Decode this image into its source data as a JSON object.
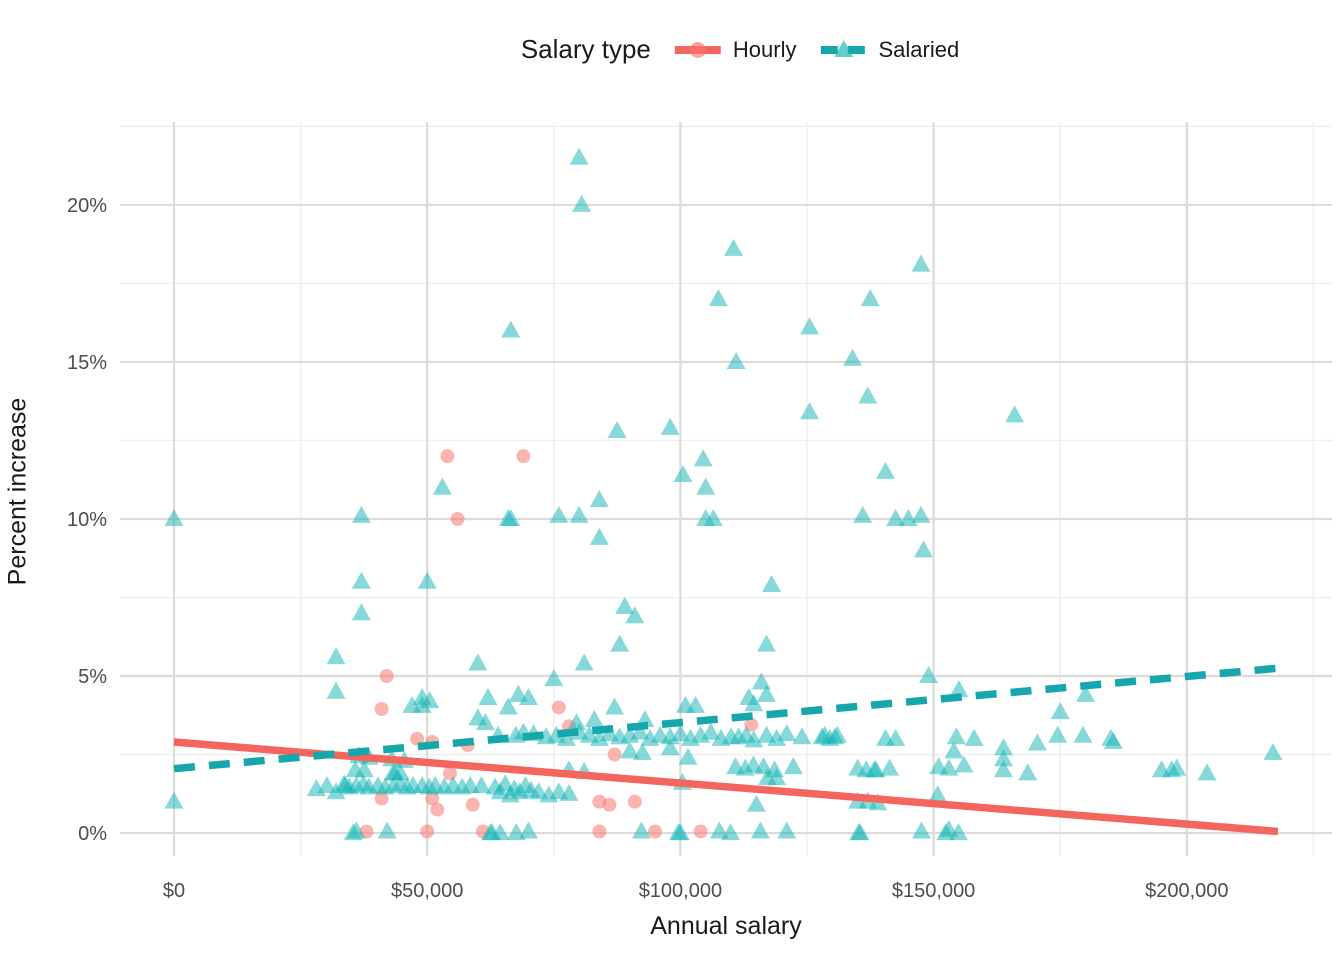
{
  "legend": {
    "title": "Salary type",
    "items": [
      {
        "label": "Hourly"
      },
      {
        "label": "Salaried"
      }
    ]
  },
  "axes": {
    "x": {
      "title": "Annual salary",
      "tick_labels": [
        "$0",
        "$50,000",
        "$100,000",
        "$150,000",
        "$200,000"
      ]
    },
    "y": {
      "title": "Percent increase",
      "tick_labels": [
        "0%",
        "5%",
        "10%",
        "15%",
        "20%"
      ]
    }
  },
  "chart_data": {
    "type": "scatter",
    "title": "",
    "xlabel": "Annual salary",
    "ylabel": "Percent increase",
    "legend_title": "Salary type",
    "legend_position": "top",
    "grid": {
      "major_color": "#dbdbdb",
      "minor_color": "#eeeeee"
    },
    "x_range": [
      -10663,
      228672
    ],
    "y_range": [
      -0.73,
      22.64
    ],
    "x_major": [
      0,
      50000,
      100000,
      150000,
      200000
    ],
    "x_major_labels": [
      "$0",
      "$50,000",
      "$100,000",
      "$150,000",
      "$200,000"
    ],
    "x_minor": [
      25000,
      75000,
      125000,
      175000,
      225000
    ],
    "y_major": [
      0,
      5,
      10,
      15,
      20
    ],
    "y_major_labels": [
      "0%",
      "5%",
      "10%",
      "15%",
      "20%"
    ],
    "y_minor": [
      2.5,
      7.5,
      12.5,
      17.5,
      22.5
    ],
    "series": [
      {
        "name": "Hourly",
        "marker": "circle",
        "marker_color": "#F8766D",
        "marker_opacity": 0.55,
        "line_color": "#F4655E",
        "line_style": "solid",
        "trend": {
          "x": [
            0,
            218000
          ],
          "y": [
            2.9,
            0.05
          ]
        },
        "points": [
          [
            54000,
            12
          ],
          [
            69000,
            12
          ],
          [
            56000,
            10
          ],
          [
            42000,
            5
          ],
          [
            41000,
            3.95
          ],
          [
            76000,
            4
          ],
          [
            78000,
            3.4
          ],
          [
            114000,
            3.45
          ],
          [
            48000,
            3
          ],
          [
            51000,
            2.9
          ],
          [
            58000,
            2.8
          ],
          [
            87000,
            2.5
          ],
          [
            54500,
            1.9
          ],
          [
            41000,
            1.1
          ],
          [
            51000,
            1.1
          ],
          [
            59000,
            0.9
          ],
          [
            84000,
            1
          ],
          [
            86000,
            0.9
          ],
          [
            91000,
            1
          ],
          [
            52000,
            0.75
          ],
          [
            38000,
            0.05
          ],
          [
            50000,
            0.05
          ],
          [
            61000,
            0.05
          ],
          [
            84000,
            0.05
          ],
          [
            95000,
            0.05
          ],
          [
            104000,
            0.05
          ]
        ]
      },
      {
        "name": "Salaried",
        "marker": "triangle",
        "marker_color": "#0FB3B3",
        "marker_opacity": 0.5,
        "line_color": "#16A7AD",
        "line_style": "dashed",
        "trend": {
          "x": [
            0,
            218000
          ],
          "y": [
            2.05,
            5.25
          ]
        },
        "points": [
          [
            80000,
            21.5
          ],
          [
            80500,
            20
          ],
          [
            110500,
            18.6
          ],
          [
            147500,
            18.1
          ],
          [
            107500,
            17
          ],
          [
            137500,
            17
          ],
          [
            125500,
            16.1
          ],
          [
            66500,
            16
          ],
          [
            134000,
            15.1
          ],
          [
            111000,
            15
          ],
          [
            137000,
            13.9
          ],
          [
            125500,
            13.4
          ],
          [
            87500,
            12.8
          ],
          [
            98000,
            12.9
          ],
          [
            166000,
            13.3
          ],
          [
            104500,
            11.9
          ],
          [
            100500,
            11.4
          ],
          [
            105000,
            11
          ],
          [
            140500,
            11.5
          ],
          [
            53000,
            11
          ],
          [
            84000,
            10.6
          ],
          [
            37000,
            10.1
          ],
          [
            0,
            10
          ],
          [
            76000,
            10.1
          ],
          [
            80000,
            10.1
          ],
          [
            105000,
            10
          ],
          [
            106500,
            10
          ],
          [
            136000,
            10.1
          ],
          [
            66000,
            10
          ],
          [
            66500,
            10
          ],
          [
            142500,
            10
          ],
          [
            145000,
            10
          ],
          [
            147500,
            10.1
          ],
          [
            148000,
            9
          ],
          [
            84000,
            9.4
          ],
          [
            37000,
            8
          ],
          [
            50000,
            8
          ],
          [
            118000,
            7.9
          ],
          [
            89000,
            7.2
          ],
          [
            37000,
            7
          ],
          [
            91000,
            6.9
          ],
          [
            88000,
            6
          ],
          [
            117000,
            6
          ],
          [
            32000,
            5.6
          ],
          [
            81000,
            5.4
          ],
          [
            60000,
            5.4
          ],
          [
            75000,
            4.9
          ],
          [
            149000,
            5
          ],
          [
            155000,
            4.55
          ],
          [
            180000,
            4.4
          ],
          [
            116000,
            4.8
          ],
          [
            68000,
            4.4
          ],
          [
            32000,
            4.5
          ],
          [
            117000,
            4.4
          ],
          [
            113500,
            4.3
          ],
          [
            114500,
            4.1
          ],
          [
            62000,
            4.3
          ],
          [
            70000,
            4.3
          ],
          [
            49000,
            4.3
          ],
          [
            50500,
            4.2
          ],
          [
            66000,
            4
          ],
          [
            87000,
            4
          ],
          [
            101000,
            4.05
          ],
          [
            103000,
            4.05
          ],
          [
            47000,
            4.05
          ],
          [
            49000,
            4.05
          ],
          [
            175000,
            3.85
          ],
          [
            79500,
            3.5
          ],
          [
            83000,
            3.6
          ],
          [
            93000,
            3.6
          ],
          [
            61500,
            3.5
          ],
          [
            60000,
            3.65
          ],
          [
            64000,
            3.1
          ],
          [
            67500,
            3.1
          ],
          [
            69000,
            3.2
          ],
          [
            71000,
            3.15
          ],
          [
            73500,
            3.05
          ],
          [
            75500,
            3.1
          ],
          [
            77500,
            3
          ],
          [
            80000,
            3.2
          ],
          [
            82000,
            3.1
          ],
          [
            84000,
            3
          ],
          [
            86000,
            3.15
          ],
          [
            88000,
            3.05
          ],
          [
            90000,
            3.1
          ],
          [
            92000,
            3.2
          ],
          [
            94000,
            3
          ],
          [
            96000,
            3.1
          ],
          [
            98000,
            3.05
          ],
          [
            100000,
            3.15
          ],
          [
            102000,
            3
          ],
          [
            104000,
            3.1
          ],
          [
            106000,
            3.2
          ],
          [
            108000,
            3
          ],
          [
            110000,
            3.05
          ],
          [
            111500,
            3.05
          ],
          [
            113000,
            3.1
          ],
          [
            114500,
            2.95
          ],
          [
            117000,
            3.1
          ],
          [
            119000,
            3
          ],
          [
            121000,
            3.15
          ],
          [
            124000,
            3.05
          ],
          [
            128000,
            3.05
          ],
          [
            128500,
            3.1
          ],
          [
            129500,
            3
          ],
          [
            130500,
            3.05
          ],
          [
            131000,
            3.1
          ],
          [
            140500,
            3
          ],
          [
            142500,
            3
          ],
          [
            154500,
            3.05
          ],
          [
            158000,
            3
          ],
          [
            170500,
            2.85
          ],
          [
            174500,
            3.1
          ],
          [
            179500,
            3.1
          ],
          [
            185000,
            3
          ],
          [
            185500,
            2.9
          ],
          [
            36500,
            2.45
          ],
          [
            38500,
            2.4
          ],
          [
            43000,
            2.35
          ],
          [
            45500,
            2.3
          ],
          [
            90000,
            2.6
          ],
          [
            92500,
            2.55
          ],
          [
            98000,
            2.7
          ],
          [
            101500,
            2.4
          ],
          [
            154000,
            2.6
          ],
          [
            163800,
            2.7
          ],
          [
            217000,
            2.55
          ],
          [
            35800,
            2
          ],
          [
            37600,
            2
          ],
          [
            43300,
            1.9
          ],
          [
            43600,
            1.9
          ],
          [
            44700,
            1.9
          ],
          [
            78000,
            2
          ],
          [
            81000,
            1.95
          ],
          [
            110900,
            2.1
          ],
          [
            112800,
            2.05
          ],
          [
            114400,
            2.15
          ],
          [
            116400,
            2.1
          ],
          [
            118600,
            2
          ],
          [
            122300,
            2.1
          ],
          [
            135000,
            2.05
          ],
          [
            136700,
            2
          ],
          [
            138300,
            2
          ],
          [
            138600,
            2
          ],
          [
            141300,
            2.05
          ],
          [
            151000,
            2.1
          ],
          [
            153000,
            2.05
          ],
          [
            156000,
            2.15
          ],
          [
            163800,
            2.35
          ],
          [
            163800,
            2
          ],
          [
            168600,
            1.9
          ],
          [
            195000,
            2
          ],
          [
            197000,
            2
          ],
          [
            198000,
            2.05
          ],
          [
            204000,
            1.9
          ],
          [
            100400,
            1.6
          ],
          [
            117200,
            1.75
          ],
          [
            119000,
            1.75
          ],
          [
            28100,
            1.4
          ],
          [
            30200,
            1.5
          ],
          [
            32000,
            1.3
          ],
          [
            33600,
            1.55
          ],
          [
            33800,
            1.5
          ],
          [
            34600,
            1.45
          ],
          [
            36000,
            1.5
          ],
          [
            37400,
            1.55
          ],
          [
            38500,
            1.45
          ],
          [
            40300,
            1.5
          ],
          [
            41700,
            1.45
          ],
          [
            43300,
            1.5
          ],
          [
            44700,
            1.55
          ],
          [
            46000,
            1.45
          ],
          [
            47200,
            1.5
          ],
          [
            49000,
            1.5
          ],
          [
            50400,
            1.45
          ],
          [
            51600,
            1.5
          ],
          [
            53400,
            1.45
          ],
          [
            55100,
            1.5
          ],
          [
            56900,
            1.45
          ],
          [
            58500,
            1.5
          ],
          [
            60700,
            1.5
          ],
          [
            63400,
            1.45
          ],
          [
            64400,
            1.3
          ],
          [
            65400,
            1.55
          ],
          [
            66400,
            1.2
          ],
          [
            67200,
            1.4
          ],
          [
            68300,
            1.3
          ],
          [
            69400,
            1.5
          ],
          [
            70500,
            1.35
          ],
          [
            72000,
            1.3
          ],
          [
            74000,
            1.2
          ],
          [
            76000,
            1.3
          ],
          [
            78000,
            1.25
          ],
          [
            0,
            1
          ],
          [
            115000,
            0.9
          ],
          [
            135000,
            1
          ],
          [
            137000,
            1
          ],
          [
            139000,
            0.95
          ],
          [
            150800,
            1.2
          ],
          [
            35400,
            0
          ],
          [
            36000,
            0.05
          ],
          [
            42100,
            0.05
          ],
          [
            62500,
            0
          ],
          [
            62800,
            0
          ],
          [
            64400,
            0
          ],
          [
            67600,
            0
          ],
          [
            70000,
            0.05
          ],
          [
            92300,
            0.05
          ],
          [
            99600,
            0
          ],
          [
            100000,
            0
          ],
          [
            107700,
            0.05
          ],
          [
            109900,
            0
          ],
          [
            115800,
            0.05
          ],
          [
            121000,
            0.05
          ],
          [
            135200,
            0
          ],
          [
            135500,
            0
          ],
          [
            147600,
            0.05
          ],
          [
            152400,
            0
          ],
          [
            153000,
            0.1
          ],
          [
            154900,
            0
          ]
        ]
      }
    ]
  }
}
